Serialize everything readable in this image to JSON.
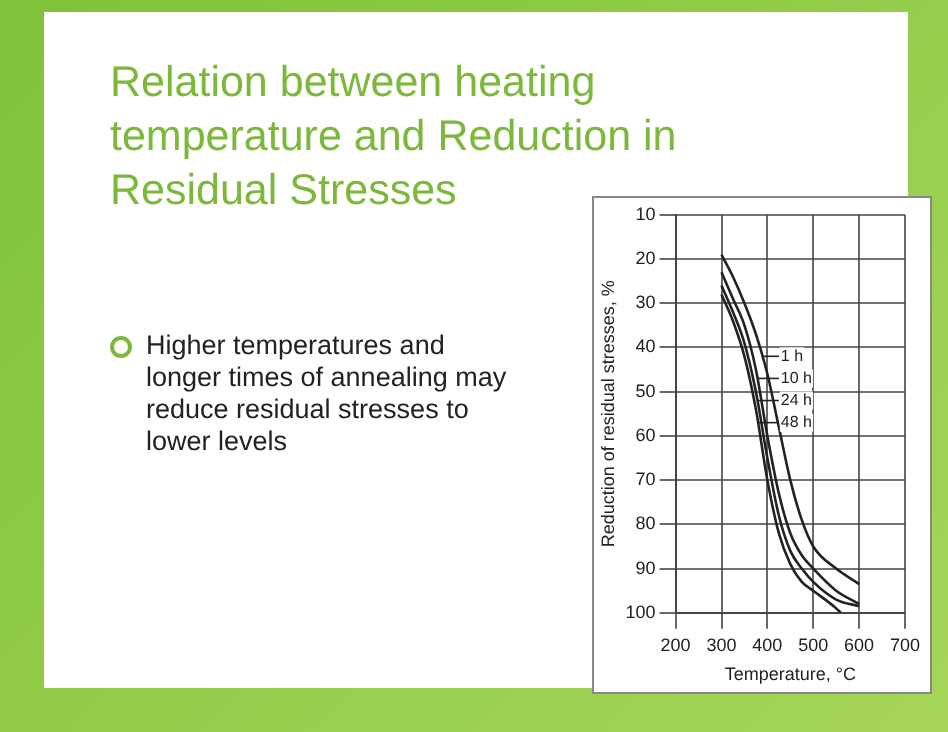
{
  "chart_data": {
    "type": "line",
    "title": "Relation between heating temperature and Reduction in Residual Stresses",
    "annotations": [
      "Higher temperatures and longer times of annealing may reduce residual stresses to lower levels"
    ],
    "xlabel": "Temperature, °C",
    "ylabel": "Reduction of residual stresses, %",
    "xlim": [
      200,
      700
    ],
    "xticks": [
      200,
      300,
      400,
      500,
      600,
      700
    ],
    "ylim": [
      100,
      10
    ],
    "yticks": [
      10,
      20,
      30,
      40,
      50,
      60,
      70,
      80,
      90,
      100
    ],
    "grid": true,
    "legend": "right",
    "marker": "none",
    "line_style": "solid",
    "series": [
      {
        "name": "1 h",
        "color": "#222222",
        "x": [
          300,
          325,
          350,
          375,
          400,
          425,
          450,
          475,
          500,
          550,
          600
        ],
        "values": [
          19,
          24,
          30,
          37,
          46,
          58,
          70,
          79,
          85,
          90,
          93.5
        ]
      },
      {
        "name": "10 h",
        "color": "#222222",
        "x": [
          300,
          325,
          350,
          375,
          400,
          425,
          450,
          475,
          500,
          550,
          600
        ],
        "values": [
          23,
          29,
          35,
          45,
          60,
          73,
          82,
          87,
          90,
          95,
          98
        ]
      },
      {
        "name": "24 h",
        "color": "#222222",
        "x": [
          300,
          325,
          350,
          375,
          400,
          425,
          450,
          475,
          500,
          550,
          600
        ],
        "values": [
          26,
          32,
          39,
          50,
          65,
          78,
          86,
          90,
          93,
          97,
          98.5
        ]
      },
      {
        "name": "48 h",
        "color": "#222222",
        "x": [
          300,
          325,
          350,
          375,
          400,
          425,
          450,
          475,
          500,
          550,
          560
        ],
        "values": [
          28,
          34,
          42,
          54,
          70,
          82,
          89,
          93,
          95,
          99,
          100
        ]
      }
    ]
  }
}
